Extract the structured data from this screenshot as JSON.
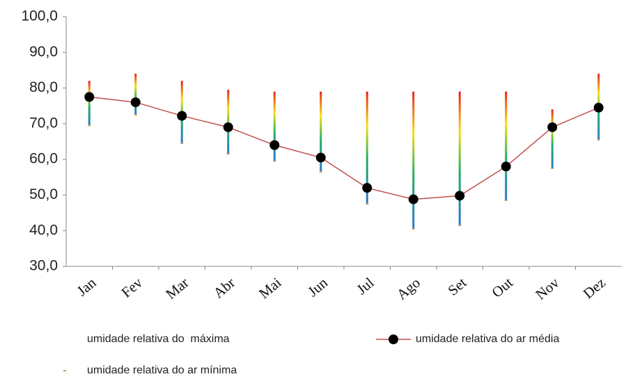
{
  "chart_data": {
    "type": "high-low-line",
    "categories": [
      "Jan",
      "Fev",
      "Mar",
      "Abr",
      "Mai",
      "Jun",
      "Jul",
      "Ago",
      "Set",
      "Out",
      "Nov",
      "Dez"
    ],
    "series": [
      {
        "name": "umidade relativa do  máxima",
        "color": "#e02a1e",
        "values": [
          82,
          84,
          82,
          79.5,
          79,
          79,
          79,
          79,
          79,
          79,
          74,
          84
        ]
      },
      {
        "name": "umidade relativa do ar média",
        "color": "#c0504d",
        "values": [
          77.5,
          76,
          72.2,
          69,
          64,
          60.5,
          52,
          48.8,
          49.8,
          58,
          69,
          74.5
        ]
      },
      {
        "name": "umidade relativa do ar mínima",
        "color": "#c8a060",
        "values": [
          69.5,
          72.5,
          64.5,
          61.5,
          59.5,
          56.5,
          47.5,
          40.5,
          41.5,
          48.5,
          57.5,
          65.5
        ]
      }
    ],
    "ylim": [
      30,
      100
    ],
    "yticks": [
      {
        "value": 30,
        "label": "30,0"
      },
      {
        "value": 40,
        "label": "40,0"
      },
      {
        "value": 50,
        "label": "50,0"
      },
      {
        "value": 60,
        "label": "60,0"
      },
      {
        "value": 70,
        "label": "70,0"
      },
      {
        "value": 80,
        "label": "80,0"
      },
      {
        "value": 90,
        "label": "90,0"
      },
      {
        "value": 100,
        "label": "100,0"
      }
    ],
    "grid": false
  }
}
